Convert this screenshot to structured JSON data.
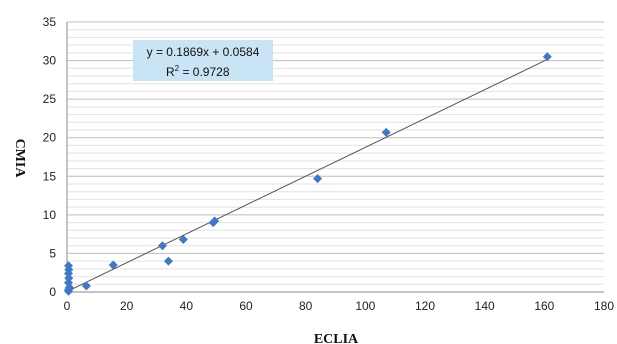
{
  "chart_data": {
    "type": "scatter",
    "title": "",
    "xlabel": "ECLIA",
    "ylabel": "CMIA",
    "xlim": [
      0,
      180
    ],
    "ylim": [
      0,
      35
    ],
    "xticks": [
      0,
      20,
      40,
      60,
      80,
      100,
      120,
      140,
      160,
      180
    ],
    "yticks": [
      0,
      5,
      10,
      15,
      20,
      25,
      30,
      35
    ],
    "grid": true,
    "marker_color": "#3f78c8",
    "trendline_color": "#555555",
    "equation_box_color": "#c9e4f5",
    "trendline": {
      "slope": 0.1869,
      "intercept": 0.0584,
      "equation": "y = 0.1869x + 0.0584",
      "r2_prefix": "R",
      "r2_sup": "2",
      "r2_value": " = 0.9728"
    },
    "points": [
      {
        "x": 0.5,
        "y": 0.1
      },
      {
        "x": 0.5,
        "y": 0.3
      },
      {
        "x": 0.8,
        "y": 0.6
      },
      {
        "x": 0.5,
        "y": 1.2
      },
      {
        "x": 0.6,
        "y": 1.8
      },
      {
        "x": 0.5,
        "y": 2.4
      },
      {
        "x": 0.6,
        "y": 2.9
      },
      {
        "x": 0.5,
        "y": 3.4
      },
      {
        "x": 6.5,
        "y": 0.8
      },
      {
        "x": 15.5,
        "y": 3.5
      },
      {
        "x": 32.0,
        "y": 6.0
      },
      {
        "x": 34.0,
        "y": 4.0
      },
      {
        "x": 39.0,
        "y": 6.8
      },
      {
        "x": 49.0,
        "y": 9.0
      },
      {
        "x": 49.5,
        "y": 9.2
      },
      {
        "x": 84.0,
        "y": 14.7
      },
      {
        "x": 107.0,
        "y": 20.7
      },
      {
        "x": 161.0,
        "y": 30.5
      }
    ]
  }
}
